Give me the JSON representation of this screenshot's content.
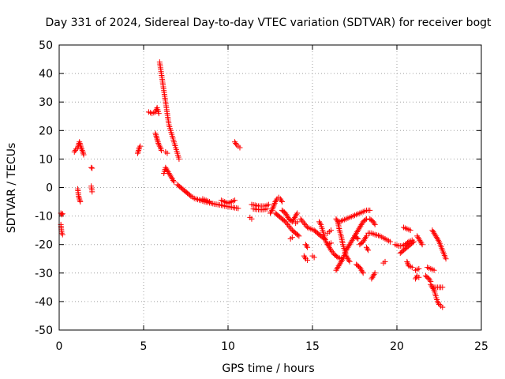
{
  "chart_data": {
    "type": "scatter",
    "title": "Day 331 of 2024, Sidereal Day-to-day VTEC variation (SDTVAR) for receiver bogt",
    "xlabel": "GPS time / hours",
    "ylabel": "SDTVAR / TECUs",
    "xlim": [
      0,
      25
    ],
    "ylim": [
      -50,
      50
    ],
    "xticks": [
      0,
      5,
      10,
      15,
      20,
      25
    ],
    "yticks": [
      -50,
      -40,
      -30,
      -20,
      -10,
      0,
      10,
      20,
      30,
      40,
      50
    ],
    "grid": true,
    "marker": "plus",
    "color": "#ff0000",
    "series": [
      {
        "name": "SDTVAR",
        "segments": [
          [
            [
              0.1,
              -9
            ],
            [
              0.15,
              -9.5
            ],
            [
              0.2,
              -9.2
            ]
          ],
          [
            [
              0.1,
              -13
            ],
            [
              0.15,
              -16
            ],
            [
              0.2,
              -16.5
            ]
          ],
          [
            [
              0.9,
              12.5
            ],
            [
              1.0,
              13.5
            ],
            [
              1.1,
              14
            ],
            [
              1.15,
              15
            ],
            [
              1.2,
              16
            ],
            [
              1.25,
              15
            ],
            [
              1.3,
              14
            ],
            [
              1.4,
              12.5
            ],
            [
              1.45,
              11.5
            ]
          ],
          [
            [
              1.1,
              -0.5
            ],
            [
              1.15,
              -3
            ],
            [
              1.2,
              -4
            ],
            [
              1.25,
              -5
            ]
          ],
          [
            [
              1.9,
              7
            ],
            [
              1.95,
              6.8
            ]
          ],
          [
            [
              1.9,
              0.5
            ],
            [
              1.95,
              -1.5
            ]
          ],
          [
            [
              4.65,
              12
            ],
            [
              4.7,
              13
            ],
            [
              4.75,
              14
            ],
            [
              4.8,
              14.5
            ]
          ],
          [
            [
              5.3,
              26.5
            ],
            [
              5.5,
              26
            ],
            [
              5.7,
              26.5
            ],
            [
              5.8,
              28
            ],
            [
              5.9,
              26
            ]
          ],
          [
            [
              5.7,
              19
            ],
            [
              5.75,
              18
            ],
            [
              5.8,
              17
            ],
            [
              5.85,
              16
            ],
            [
              5.9,
              15
            ],
            [
              6.0,
              14
            ],
            [
              6.05,
              13
            ]
          ],
          [
            [
              5.95,
              44
            ],
            [
              6.0,
              42
            ],
            [
              6.05,
              40
            ],
            [
              6.1,
              38
            ],
            [
              6.15,
              36
            ],
            [
              6.2,
              34
            ],
            [
              6.25,
              32
            ],
            [
              6.3,
              30
            ],
            [
              6.35,
              28
            ],
            [
              6.4,
              26
            ],
            [
              6.45,
              24
            ],
            [
              6.5,
              22
            ],
            [
              6.6,
              20
            ],
            [
              6.7,
              18
            ],
            [
              6.8,
              16
            ],
            [
              6.9,
              14
            ],
            [
              7.0,
              12
            ],
            [
              7.1,
              10
            ]
          ],
          [
            [
              6.2,
              5
            ],
            [
              6.3,
              7
            ],
            [
              6.4,
              6
            ],
            [
              6.5,
              5
            ],
            [
              6.6,
              4
            ],
            [
              6.7,
              3
            ],
            [
              6.8,
              2
            ]
          ],
          [
            [
              6.3,
              12.5
            ],
            [
              6.4,
              12
            ]
          ],
          [
            [
              7.0,
              1
            ],
            [
              7.2,
              0
            ],
            [
              7.4,
              -1
            ],
            [
              7.6,
              -2
            ],
            [
              7.8,
              -3
            ],
            [
              8.0,
              -3.8
            ],
            [
              8.2,
              -4.2
            ],
            [
              8.4,
              -4.5
            ],
            [
              8.6,
              -5
            ],
            [
              8.8,
              -5.2
            ],
            [
              9.0,
              -5.5
            ],
            [
              9.2,
              -5.8
            ],
            [
              9.4,
              -6
            ],
            [
              9.6,
              -6.2
            ],
            [
              9.8,
              -6.5
            ],
            [
              10.0,
              -6.7
            ],
            [
              10.2,
              -6.9
            ],
            [
              10.4,
              -7.1
            ],
            [
              10.6,
              -7.3
            ]
          ],
          [
            [
              8.5,
              -4
            ],
            [
              8.7,
              -4.5
            ],
            [
              8.9,
              -5
            ]
          ],
          [
            [
              9.6,
              -4.5
            ],
            [
              9.8,
              -5
            ],
            [
              10.0,
              -5.5
            ],
            [
              10.2,
              -5
            ],
            [
              10.4,
              -4.5
            ]
          ],
          [
            [
              10.4,
              16
            ],
            [
              10.5,
              15
            ],
            [
              10.6,
              14.5
            ],
            [
              10.7,
              14
            ]
          ],
          [
            [
              11.3,
              -10.5
            ],
            [
              11.4,
              -11
            ]
          ],
          [
            [
              11.4,
              -6
            ],
            [
              11.6,
              -6.2
            ],
            [
              11.8,
              -6.5
            ],
            [
              12.0,
              -6.5
            ],
            [
              12.2,
              -6.5
            ],
            [
              12.4,
              -6
            ]
          ],
          [
            [
              11.5,
              -7.5
            ],
            [
              11.7,
              -7.7
            ],
            [
              11.9,
              -7.8
            ],
            [
              12.1,
              -7.8
            ],
            [
              12.3,
              -7.5
            ]
          ],
          [
            [
              12.5,
              -9
            ],
            [
              12.6,
              -8
            ],
            [
              12.7,
              -6.5
            ],
            [
              12.8,
              -5
            ],
            [
              12.9,
              -4
            ],
            [
              13.0,
              -3.5
            ],
            [
              13.1,
              -4
            ],
            [
              13.2,
              -5
            ]
          ],
          [
            [
              12.8,
              -9
            ],
            [
              13.0,
              -10
            ],
            [
              13.2,
              -11
            ],
            [
              13.4,
              -12
            ],
            [
              13.6,
              -13.5
            ],
            [
              13.8,
              -15
            ],
            [
              14.0,
              -16
            ],
            [
              14.2,
              -17
            ]
          ],
          [
            [
              13.2,
              -8
            ],
            [
              13.4,
              -9
            ],
            [
              13.6,
              -11
            ],
            [
              13.8,
              -12
            ],
            [
              14.0,
              -10
            ],
            [
              14.1,
              -9
            ]
          ],
          [
            [
              13.7,
              -18
            ],
            [
              13.8,
              -17.5
            ]
          ],
          [
            [
              14.0,
              -12.5
            ],
            [
              14.1,
              -12
            ]
          ],
          [
            [
              14.3,
              -11
            ],
            [
              14.5,
              -12.5
            ],
            [
              14.7,
              -14
            ],
            [
              14.9,
              -14.5
            ],
            [
              15.1,
              -15
            ],
            [
              15.3,
              -16
            ],
            [
              15.5,
              -17
            ],
            [
              15.7,
              -18
            ]
          ],
          [
            [
              14.6,
              -20
            ],
            [
              14.7,
              -21
            ]
          ],
          [
            [
              14.5,
              -24
            ],
            [
              14.6,
              -25
            ],
            [
              14.7,
              -25.5
            ]
          ],
          [
            [
              15.0,
              -24
            ],
            [
              15.1,
              -24.5
            ]
          ],
          [
            [
              15.4,
              -12
            ],
            [
              15.5,
              -13
            ],
            [
              15.6,
              -15
            ],
            [
              15.7,
              -17
            ],
            [
              15.8,
              -19
            ],
            [
              15.9,
              -20
            ],
            [
              16.0,
              -21
            ],
            [
              16.1,
              -22
            ],
            [
              16.3,
              -23.5
            ],
            [
              16.5,
              -24.5
            ],
            [
              16.7,
              -25
            ]
          ],
          [
            [
              15.9,
              -16
            ],
            [
              16.0,
              -15.5
            ],
            [
              16.1,
              -15
            ]
          ],
          [
            [
              15.9,
              -20
            ],
            [
              16.1,
              -19.5
            ]
          ],
          [
            [
              16.4,
              -11
            ],
            [
              16.5,
              -12
            ],
            [
              16.6,
              -15
            ],
            [
              16.7,
              -17
            ],
            [
              16.8,
              -20
            ],
            [
              16.9,
              -22
            ],
            [
              17.0,
              -24
            ],
            [
              17.1,
              -25
            ],
            [
              17.2,
              -26
            ]
          ],
          [
            [
              16.4,
              -29
            ],
            [
              16.5,
              -28
            ],
            [
              16.6,
              -27
            ],
            [
              16.8,
              -25
            ],
            [
              17.0,
              -22
            ],
            [
              17.2,
              -20
            ],
            [
              17.4,
              -18
            ],
            [
              17.6,
              -16
            ],
            [
              17.8,
              -14
            ],
            [
              18.0,
              -12
            ],
            [
              18.2,
              -11
            ]
          ],
          [
            [
              16.6,
              -12
            ],
            [
              16.8,
              -11.5
            ],
            [
              17.0,
              -11
            ],
            [
              17.2,
              -10.5
            ],
            [
              17.4,
              -10
            ],
            [
              17.6,
              -9.5
            ],
            [
              17.8,
              -9
            ],
            [
              18.0,
              -8.5
            ],
            [
              18.2,
              -8
            ],
            [
              18.4,
              -8
            ]
          ],
          [
            [
              17.5,
              -17
            ],
            [
              17.7,
              -18
            ]
          ],
          [
            [
              17.6,
              -27
            ],
            [
              17.8,
              -28
            ],
            [
              17.9,
              -29
            ],
            [
              18.0,
              -30
            ]
          ],
          [
            [
              17.8,
              -20
            ],
            [
              18.0,
              -19
            ],
            [
              18.2,
              -17
            ]
          ],
          [
            [
              18.2,
              -21
            ],
            [
              18.3,
              -22
            ]
          ],
          [
            [
              18.3,
              -16
            ],
            [
              18.5,
              -16
            ],
            [
              18.7,
              -16.5
            ],
            [
              19.0,
              -17
            ],
            [
              19.3,
              -18
            ],
            [
              19.6,
              -19
            ]
          ],
          [
            [
              18.4,
              -11
            ],
            [
              18.6,
              -12
            ],
            [
              18.7,
              -13
            ]
          ],
          [
            [
              18.5,
              -32
            ],
            [
              18.6,
              -31
            ],
            [
              18.7,
              -30
            ]
          ],
          [
            [
              19.2,
              -26.5
            ],
            [
              19.3,
              -26
            ]
          ],
          [
            [
              19.9,
              -20
            ],
            [
              20.1,
              -20.5
            ],
            [
              20.3,
              -20.5
            ],
            [
              20.5,
              -20
            ],
            [
              20.7,
              -19
            ],
            [
              20.9,
              -18.5
            ]
          ],
          [
            [
              20.2,
              -23
            ],
            [
              20.4,
              -22
            ],
            [
              20.6,
              -21
            ],
            [
              20.8,
              -20
            ],
            [
              21.0,
              -19
            ]
          ],
          [
            [
              20.4,
              -14
            ],
            [
              20.6,
              -14.5
            ],
            [
              20.8,
              -15
            ]
          ],
          [
            [
              20.6,
              -26
            ],
            [
              20.7,
              -27.5
            ],
            [
              20.9,
              -28
            ]
          ],
          [
            [
              21.1,
              -29
            ],
            [
              21.3,
              -28.5
            ]
          ],
          [
            [
              21.1,
              -32
            ],
            [
              21.2,
              -31
            ],
            [
              21.3,
              -31.5
            ]
          ],
          [
            [
              21.2,
              -17
            ],
            [
              21.3,
              -18
            ],
            [
              21.4,
              -19
            ],
            [
              21.5,
              -20
            ]
          ],
          [
            [
              21.8,
              -28
            ],
            [
              22.0,
              -28.5
            ],
            [
              22.2,
              -29
            ]
          ],
          [
            [
              21.7,
              -31
            ],
            [
              21.9,
              -32
            ],
            [
              22.0,
              -33
            ]
          ],
          [
            [
              22.0,
              -34
            ],
            [
              22.2,
              -36
            ],
            [
              22.3,
              -38
            ],
            [
              22.4,
              -40
            ],
            [
              22.5,
              -41
            ],
            [
              22.6,
              -41.5
            ],
            [
              22.7,
              -42
            ]
          ],
          [
            [
              22.1,
              -15
            ],
            [
              22.3,
              -17
            ],
            [
              22.5,
              -19
            ],
            [
              22.7,
              -22
            ],
            [
              22.9,
              -25
            ]
          ],
          [
            [
              22.1,
              -35
            ],
            [
              22.4,
              -35
            ],
            [
              22.7,
              -35
            ]
          ]
        ]
      }
    ]
  }
}
